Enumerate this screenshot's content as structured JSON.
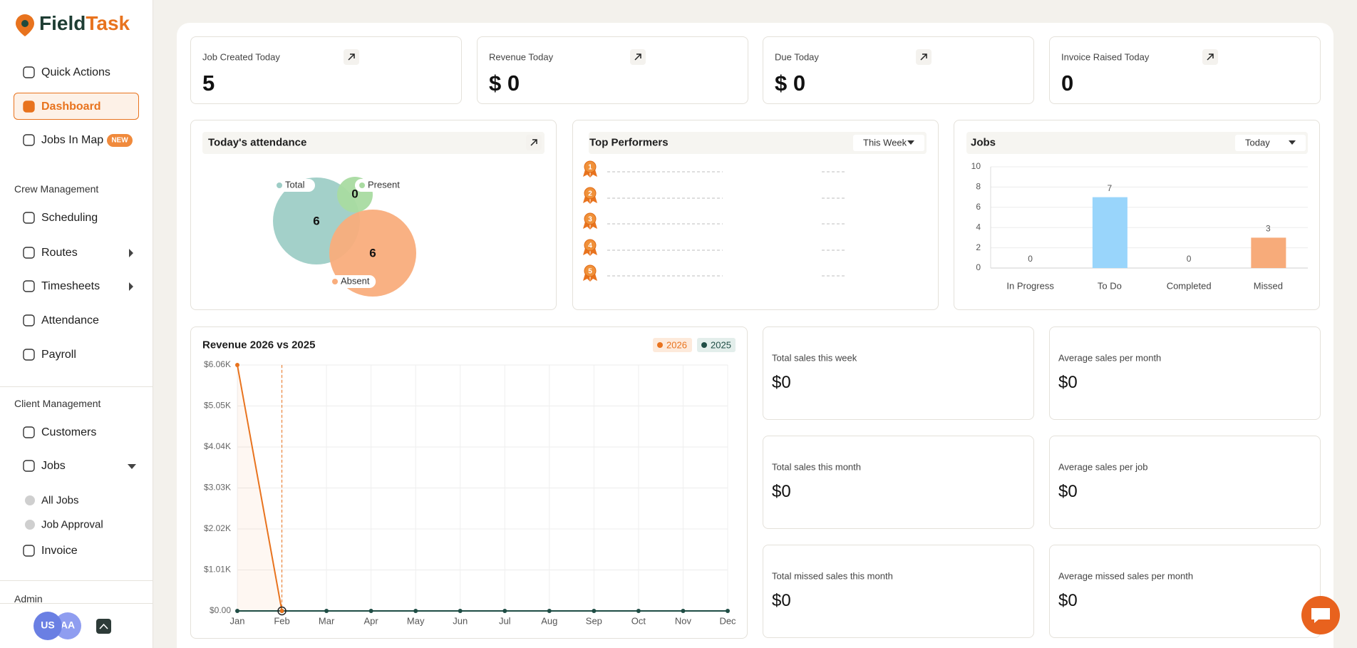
{
  "brand": {
    "first": "Field",
    "second": "Task"
  },
  "sidebar": {
    "top_items": [
      "Quick Actions",
      "Dashboard",
      "Jobs In Map"
    ],
    "new_badge": "NEW",
    "crew_title": "Crew Management",
    "crew_items": [
      "Scheduling",
      "Routes",
      "Timesheets",
      "Attendance",
      "Payroll"
    ],
    "client_title": "Client Management",
    "client_items": [
      "Customers",
      "Jobs"
    ],
    "jobs_sub": [
      "All Jobs",
      "Job Approval"
    ],
    "invoice": "Invoice",
    "admin_title": "Admin",
    "avatars": [
      "US",
      "AA"
    ]
  },
  "stats": [
    {
      "label": "Job Created Today",
      "value": "5"
    },
    {
      "label": "Revenue Today",
      "value": "$ 0"
    },
    {
      "label": "Due Today",
      "value": "$ 0"
    },
    {
      "label": "Invoice Raised Today",
      "value": "0"
    }
  ],
  "top_performers": {
    "title": "Top Performers",
    "period": "This Week",
    "ranks": [
      "1",
      "2",
      "3",
      "4",
      "5"
    ]
  },
  "chart_data": [
    {
      "type": "bubble",
      "title": "Today's attendance",
      "categories": [
        "Total",
        "Present",
        "Absent"
      ],
      "values": [
        6,
        0,
        6
      ],
      "colors": [
        "#9ecdc6",
        "#a9dba1",
        "#f9ad7c"
      ]
    },
    {
      "type": "bar",
      "title": "Jobs",
      "filter": "Today",
      "categories": [
        "In Progress",
        "To Do",
        "Completed",
        "Missed"
      ],
      "values": [
        0,
        7,
        0,
        3
      ],
      "colors": [
        "#99d5fb",
        "#99d5fb",
        "#f7ab7a",
        "#f7ab7a"
      ],
      "ylim": [
        0,
        10
      ],
      "yticks": [
        0,
        2,
        4,
        6,
        8,
        10
      ],
      "grid": true
    },
    {
      "type": "line",
      "title": "Revenue 2026 vs 2025",
      "categories": [
        "Jan",
        "Feb",
        "Mar",
        "Apr",
        "May",
        "Jun",
        "Jul",
        "Aug",
        "Sep",
        "Oct",
        "Nov",
        "Dec"
      ],
      "series": [
        {
          "name": "2026",
          "color": "#e8731e",
          "values": [
            6060,
            0,
            null,
            null,
            null,
            null,
            null,
            null,
            null,
            null,
            null,
            null
          ]
        },
        {
          "name": "2025",
          "color": "#1f4d45",
          "values": [
            0,
            0,
            0,
            0,
            0,
            0,
            0,
            0,
            0,
            0,
            0,
            0
          ]
        }
      ],
      "ylim": [
        0,
        6060
      ],
      "yticks": [
        {
          "value": 0,
          "label": "$0.00"
        },
        {
          "value": 1010,
          "label": "$1.01K"
        },
        {
          "value": 2020,
          "label": "$2.02K"
        },
        {
          "value": 3030,
          "label": "$3.03K"
        },
        {
          "value": 4040,
          "label": "$4.04K"
        },
        {
          "value": 5050,
          "label": "$5.05K"
        },
        {
          "value": 6060,
          "label": "$6.06K"
        }
      ],
      "grid": true
    }
  ],
  "sales": [
    {
      "label": "Total sales this week",
      "value": "$0"
    },
    {
      "label": "Average sales per month",
      "value": "$0"
    },
    {
      "label": "Total sales this month",
      "value": "$0"
    },
    {
      "label": "Average sales per job",
      "value": "$0"
    },
    {
      "label": "Total missed sales this month",
      "value": "$0"
    },
    {
      "label": "Average missed sales per month",
      "value": "$0"
    }
  ]
}
